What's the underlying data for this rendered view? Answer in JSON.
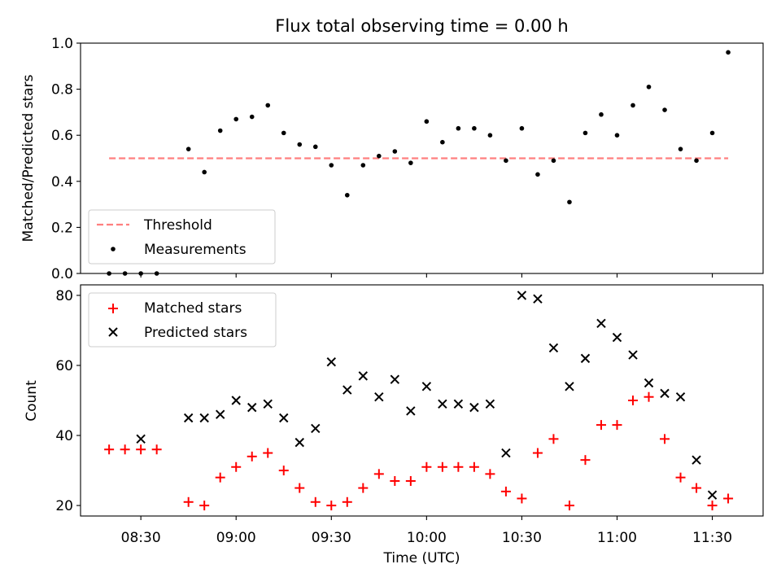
{
  "chart_data": [
    {
      "type": "scatter",
      "title": "Flux total observing time = 0.00 h",
      "ylabel": "Matched/Predicted stars",
      "xlabel": "",
      "ylim": [
        0.0,
        1.0
      ],
      "yticks": [
        "0.0",
        "0.2",
        "0.4",
        "0.6",
        "0.8",
        "1.0"
      ],
      "legend": {
        "placement": "lower-left",
        "threshold_label": "Threshold",
        "measurements_label": "Measurements"
      },
      "threshold": {
        "value": 0.5,
        "x_start": "08:20",
        "x_end": "11:35",
        "color": "#ff7f7f"
      },
      "series": [
        {
          "name": "Measurements",
          "color": "#000000",
          "x": [
            "08:20",
            "08:25",
            "08:30",
            "08:35",
            "08:45",
            "08:50",
            "08:55",
            "09:00",
            "09:05",
            "09:10",
            "09:15",
            "09:20",
            "09:25",
            "09:30",
            "09:35",
            "09:40",
            "09:45",
            "09:50",
            "09:55",
            "10:00",
            "10:05",
            "10:10",
            "10:15",
            "10:20",
            "10:25",
            "10:30",
            "10:35",
            "10:40",
            "10:45",
            "10:50",
            "10:55",
            "11:00",
            "11:05",
            "11:10",
            "11:15",
            "11:20",
            "11:25",
            "11:30",
            "11:35"
          ],
          "values": [
            0.0,
            0.0,
            0.0,
            0.0,
            0.54,
            0.44,
            0.62,
            0.67,
            0.68,
            0.73,
            0.61,
            0.56,
            0.55,
            0.47,
            0.34,
            0.47,
            0.51,
            0.53,
            0.48,
            0.66,
            0.57,
            0.63,
            0.63,
            0.6,
            0.49,
            0.63,
            0.43,
            0.49,
            0.31,
            0.61,
            0.69,
            0.6,
            0.73,
            0.81,
            0.71,
            0.54,
            0.49,
            0.61,
            0.96
          ]
        }
      ]
    },
    {
      "type": "scatter",
      "title": "",
      "ylabel": "Count",
      "xlabel": "Time (UTC)",
      "ylim": [
        17,
        83
      ],
      "yticks": [
        "20",
        "40",
        "60",
        "80"
      ],
      "xlim": [
        "08:11",
        "11:46"
      ],
      "xticks": [
        "08:30",
        "09:00",
        "09:30",
        "10:00",
        "10:30",
        "11:00",
        "11:30"
      ],
      "legend": {
        "placement": "upper-left"
      },
      "series": [
        {
          "name": "Matched stars",
          "color": "#ff0000",
          "marker": "plus",
          "x": [
            "08:20",
            "08:25",
            "08:30",
            "08:35",
            "08:45",
            "08:50",
            "08:55",
            "09:00",
            "09:05",
            "09:10",
            "09:15",
            "09:20",
            "09:25",
            "09:30",
            "09:35",
            "09:40",
            "09:45",
            "09:50",
            "09:55",
            "10:00",
            "10:05",
            "10:10",
            "10:15",
            "10:20",
            "10:25",
            "10:30",
            "10:35",
            "10:40",
            "10:45",
            "10:50",
            "10:55",
            "11:00",
            "11:05",
            "11:10",
            "11:15",
            "11:20",
            "11:25",
            "11:30",
            "11:35"
          ],
          "values": [
            36,
            36,
            36,
            36,
            21,
            20,
            28,
            31,
            34,
            35,
            30,
            25,
            21,
            20,
            21,
            25,
            29,
            27,
            27,
            31,
            31,
            31,
            31,
            29,
            24,
            22,
            35,
            39,
            20,
            33,
            43,
            43,
            50,
            51,
            39,
            28,
            25,
            20,
            22
          ]
        },
        {
          "name": "Predicted stars",
          "color": "#000000",
          "marker": "x",
          "x": [
            "08:30",
            "08:45",
            "08:50",
            "08:55",
            "09:00",
            "09:05",
            "09:10",
            "09:15",
            "09:20",
            "09:25",
            "09:30",
            "09:35",
            "09:40",
            "09:45",
            "09:50",
            "09:55",
            "10:00",
            "10:05",
            "10:10",
            "10:15",
            "10:20",
            "10:25",
            "10:30",
            "10:35",
            "10:40",
            "10:45",
            "10:50",
            "10:55",
            "11:00",
            "11:05",
            "11:10",
            "11:15",
            "11:20",
            "11:25",
            "11:30",
            "11:35"
          ],
          "values": [
            39,
            45,
            45,
            46,
            50,
            48,
            49,
            45,
            38,
            42,
            61,
            53,
            57,
            51,
            56,
            47,
            54,
            49,
            49,
            48,
            49,
            35,
            80,
            79,
            65,
            54,
            62,
            72,
            68,
            63,
            55,
            52,
            51,
            33,
            23,
            null
          ]
        }
      ]
    }
  ]
}
